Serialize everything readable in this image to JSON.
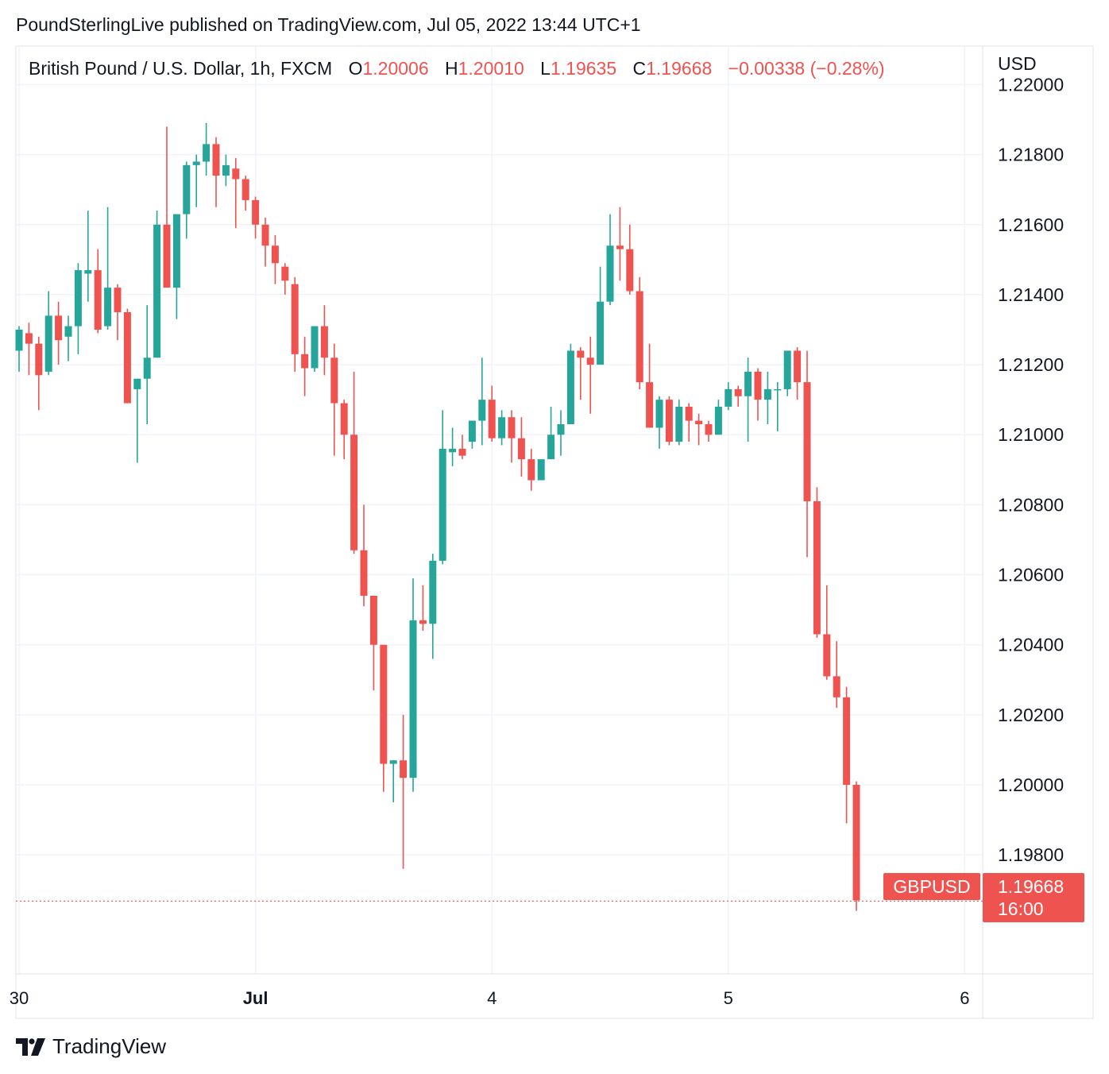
{
  "header": {
    "publisher_line": "PoundSterlingLive published on TradingView.com, Jul 05, 2022 13:44 UTC+1"
  },
  "legend": {
    "symbol": "British Pound / U.S. Dollar, 1h, FXCM",
    "o_label": "O",
    "o_value": "1.20006",
    "h_label": "H",
    "h_value": "1.20010",
    "l_label": "L",
    "l_value": "1.19635",
    "c_label": "C",
    "c_value": "1.19668",
    "change": "−0.00338 (−0.28%)"
  },
  "price_scale": {
    "currency": "USD",
    "ticks": [
      "1.22000",
      "1.21800",
      "1.21600",
      "1.21400",
      "1.21200",
      "1.21000",
      "1.20800",
      "1.20600",
      "1.20400",
      "1.20200",
      "1.20000",
      "1.19800"
    ]
  },
  "last_price": {
    "symbol_label": "GBPUSD",
    "price_label": "1.19668",
    "countdown": "16:00"
  },
  "colors": {
    "up": "#26a69a",
    "down": "#ef5350",
    "grid": "#f0f3fa",
    "axis": "#e0e3eb",
    "text": "#131722"
  },
  "brand": {
    "name": "TradingView"
  },
  "chart_data": {
    "type": "candlestick",
    "title": "British Pound / U.S. Dollar, 1h, FXCM",
    "ylabel": "USD",
    "ylim": [
      1.1946,
      1.2211
    ],
    "x_ticks": [
      {
        "label": "30",
        "index": 0
      },
      {
        "label": "Jul",
        "index": 24,
        "bold": true
      },
      {
        "label": "4",
        "index": 48
      },
      {
        "label": "5",
        "index": 72
      },
      {
        "label": "6",
        "index": 96
      }
    ],
    "last_close": 1.19668,
    "candles": [
      {
        "o": 1.2124,
        "h": 1.2131,
        "l": 1.2118,
        "c": 1.213
      },
      {
        "o": 1.2129,
        "h": 1.2132,
        "l": 1.2117,
        "c": 1.2126
      },
      {
        "o": 1.2126,
        "h": 1.2128,
        "l": 1.2107,
        "c": 1.2117
      },
      {
        "o": 1.2118,
        "h": 1.2141,
        "l": 1.2117,
        "c": 1.2134
      },
      {
        "o": 1.2134,
        "h": 1.2138,
        "l": 1.212,
        "c": 1.2127
      },
      {
        "o": 1.2128,
        "h": 1.2134,
        "l": 1.2121,
        "c": 1.2131
      },
      {
        "o": 1.2131,
        "h": 1.2149,
        "l": 1.2123,
        "c": 1.2147
      },
      {
        "o": 1.2146,
        "h": 1.2164,
        "l": 1.2138,
        "c": 1.2147
      },
      {
        "o": 1.2147,
        "h": 1.2153,
        "l": 1.2129,
        "c": 1.213
      },
      {
        "o": 1.2131,
        "h": 1.2165,
        "l": 1.213,
        "c": 1.2142
      },
      {
        "o": 1.2142,
        "h": 1.2143,
        "l": 1.2127,
        "c": 1.2135
      },
      {
        "o": 1.2135,
        "h": 1.2136,
        "l": 1.2109,
        "c": 1.2109
      },
      {
        "o": 1.2113,
        "h": 1.2115,
        "l": 1.2092,
        "c": 1.2116
      },
      {
        "o": 1.2116,
        "h": 1.2137,
        "l": 1.2103,
        "c": 1.2122
      },
      {
        "o": 1.2122,
        "h": 1.2164,
        "l": 1.2122,
        "c": 1.216
      },
      {
        "o": 1.216,
        "h": 1.2188,
        "l": 1.2142,
        "c": 1.2142
      },
      {
        "o": 1.2142,
        "h": 1.2162,
        "l": 1.2133,
        "c": 1.2163
      },
      {
        "o": 1.2163,
        "h": 1.2178,
        "l": 1.2156,
        "c": 1.2177
      },
      {
        "o": 1.2177,
        "h": 1.218,
        "l": 1.2165,
        "c": 1.2178
      },
      {
        "o": 1.2178,
        "h": 1.2189,
        "l": 1.2174,
        "c": 1.2183
      },
      {
        "o": 1.2183,
        "h": 1.2185,
        "l": 1.2165,
        "c": 1.2174
      },
      {
        "o": 1.2174,
        "h": 1.218,
        "l": 1.2171,
        "c": 1.2177
      },
      {
        "o": 1.2176,
        "h": 1.2179,
        "l": 1.2159,
        "c": 1.2173
      },
      {
        "o": 1.2173,
        "h": 1.2174,
        "l": 1.2164,
        "c": 1.2167
      },
      {
        "o": 1.2167,
        "h": 1.2168,
        "l": 1.2156,
        "c": 1.216
      },
      {
        "o": 1.216,
        "h": 1.2162,
        "l": 1.2148,
        "c": 1.2154
      },
      {
        "o": 1.2154,
        "h": 1.2157,
        "l": 1.2143,
        "c": 1.2149
      },
      {
        "o": 1.2148,
        "h": 1.2149,
        "l": 1.214,
        "c": 1.2144
      },
      {
        "o": 1.2143,
        "h": 1.2145,
        "l": 1.2118,
        "c": 1.2123
      },
      {
        "o": 1.2123,
        "h": 1.2128,
        "l": 1.2111,
        "c": 1.2119
      },
      {
        "o": 1.2119,
        "h": 1.2131,
        "l": 1.2118,
        "c": 1.2131
      },
      {
        "o": 1.2131,
        "h": 1.2137,
        "l": 1.2117,
        "c": 1.2122
      },
      {
        "o": 1.2122,
        "h": 1.2126,
        "l": 1.2094,
        "c": 1.2109
      },
      {
        "o": 1.2109,
        "h": 1.211,
        "l": 1.2093,
        "c": 1.21
      },
      {
        "o": 1.21,
        "h": 1.2118,
        "l": 1.2066,
        "c": 1.2067
      },
      {
        "o": 1.2067,
        "h": 1.208,
        "l": 1.2051,
        "c": 1.2054
      },
      {
        "o": 1.2054,
        "h": 1.2054,
        "l": 1.2027,
        "c": 1.204
      },
      {
        "o": 1.204,
        "h": 1.204,
        "l": 1.1998,
        "c": 1.2006
      },
      {
        "o": 1.2006,
        "h": 1.2007,
        "l": 1.1995,
        "c": 1.2007
      },
      {
        "o": 1.2007,
        "h": 1.202,
        "l": 1.1976,
        "c": 1.2002
      },
      {
        "o": 1.2002,
        "h": 1.2059,
        "l": 1.1998,
        "c": 1.2047
      },
      {
        "o": 1.2047,
        "h": 1.2057,
        "l": 1.2044,
        "c": 1.2046
      },
      {
        "o": 1.2046,
        "h": 1.2066,
        "l": 1.2036,
        "c": 1.2064
      },
      {
        "o": 1.2064,
        "h": 1.2107,
        "l": 1.2063,
        "c": 1.2096
      },
      {
        "o": 1.2095,
        "h": 1.2102,
        "l": 1.2091,
        "c": 1.2096
      },
      {
        "o": 1.2096,
        "h": 1.21,
        "l": 1.2093,
        "c": 1.2094
      },
      {
        "o": 1.2098,
        "h": 1.2104,
        "l": 1.2096,
        "c": 1.2104
      },
      {
        "o": 1.2104,
        "h": 1.2122,
        "l": 1.2097,
        "c": 1.211
      },
      {
        "o": 1.211,
        "h": 1.2114,
        "l": 1.2098,
        "c": 1.2099
      },
      {
        "o": 1.2099,
        "h": 1.2107,
        "l": 1.2097,
        "c": 1.2105
      },
      {
        "o": 1.2105,
        "h": 1.2107,
        "l": 1.2092,
        "c": 1.2099
      },
      {
        "o": 1.2099,
        "h": 1.2105,
        "l": 1.2088,
        "c": 1.2093
      },
      {
        "o": 1.2093,
        "h": 1.2096,
        "l": 1.2084,
        "c": 1.2087
      },
      {
        "o": 1.2087,
        "h": 1.2093,
        "l": 1.2087,
        "c": 1.2093
      },
      {
        "o": 1.2093,
        "h": 1.2108,
        "l": 1.2093,
        "c": 1.21
      },
      {
        "o": 1.21,
        "h": 1.2107,
        "l": 1.2094,
        "c": 1.2103
      },
      {
        "o": 1.2103,
        "h": 1.2126,
        "l": 1.2103,
        "c": 1.2124
      },
      {
        "o": 1.2124,
        "h": 1.2125,
        "l": 1.211,
        "c": 1.2122
      },
      {
        "o": 1.2122,
        "h": 1.2128,
        "l": 1.2106,
        "c": 1.212
      },
      {
        "o": 1.212,
        "h": 1.2148,
        "l": 1.212,
        "c": 1.2138
      },
      {
        "o": 1.2138,
        "h": 1.2163,
        "l": 1.2137,
        "c": 1.2154
      },
      {
        "o": 1.2154,
        "h": 1.2165,
        "l": 1.2144,
        "c": 1.2153
      },
      {
        "o": 1.2153,
        "h": 1.216,
        "l": 1.214,
        "c": 1.2141
      },
      {
        "o": 1.2141,
        "h": 1.2145,
        "l": 1.2113,
        "c": 1.2115
      },
      {
        "o": 1.2115,
        "h": 1.2126,
        "l": 1.2102,
        "c": 1.2102
      },
      {
        "o": 1.2102,
        "h": 1.2111,
        "l": 1.2096,
        "c": 1.211
      },
      {
        "o": 1.211,
        "h": 1.2111,
        "l": 1.2097,
        "c": 1.2098
      },
      {
        "o": 1.2098,
        "h": 1.211,
        "l": 1.2097,
        "c": 1.2108
      },
      {
        "o": 1.2108,
        "h": 1.2109,
        "l": 1.2098,
        "c": 1.2104
      },
      {
        "o": 1.2104,
        "h": 1.2106,
        "l": 1.2097,
        "c": 1.2103
      },
      {
        "o": 1.2103,
        "h": 1.2104,
        "l": 1.2098,
        "c": 1.21
      },
      {
        "o": 1.21,
        "h": 1.211,
        "l": 1.21,
        "c": 1.2108
      },
      {
        "o": 1.2108,
        "h": 1.2115,
        "l": 1.2107,
        "c": 1.2113
      },
      {
        "o": 1.2113,
        "h": 1.2114,
        "l": 1.2108,
        "c": 1.2111
      },
      {
        "o": 1.2111,
        "h": 1.2122,
        "l": 1.2098,
        "c": 1.2118
      },
      {
        "o": 1.2118,
        "h": 1.2119,
        "l": 1.2104,
        "c": 1.211
      },
      {
        "o": 1.211,
        "h": 1.2118,
        "l": 1.2103,
        "c": 1.2113
      },
      {
        "o": 1.2113,
        "h": 1.2115,
        "l": 1.2101,
        "c": 1.2113
      },
      {
        "o": 1.2113,
        "h": 1.2124,
        "l": 1.2111,
        "c": 1.2124
      },
      {
        "o": 1.2124,
        "h": 1.2125,
        "l": 1.211,
        "c": 1.2115
      },
      {
        "o": 1.2115,
        "h": 1.2124,
        "l": 1.2065,
        "c": 1.2081
      },
      {
        "o": 1.2081,
        "h": 1.2085,
        "l": 1.2042,
        "c": 1.2043
      },
      {
        "o": 1.2043,
        "h": 1.2057,
        "l": 1.203,
        "c": 1.2031
      },
      {
        "o": 1.2031,
        "h": 1.2041,
        "l": 1.2022,
        "c": 1.2025
      },
      {
        "o": 1.2025,
        "h": 1.2028,
        "l": 1.1989,
        "c": 1.2
      },
      {
        "o": 1.2,
        "h": 1.2001,
        "l": 1.1964,
        "c": 1.1967
      }
    ]
  }
}
